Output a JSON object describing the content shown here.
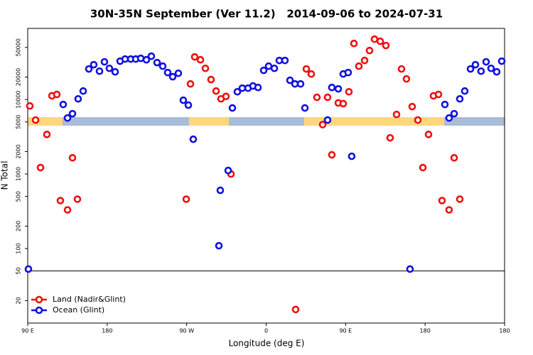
{
  "chart_data": {
    "type": "scatter",
    "title": "30N-35N September (Ver 11.2)   2014-09-06 to 2024-07-31",
    "x_label": "Longitude (deg E)",
    "y_label": "N Total",
    "log_y": true,
    "legend": "bottom-left",
    "xlim": [
      90,
      630
    ],
    "xticks": [
      {
        "value": 90,
        "label": "90 E"
      },
      180,
      {
        "value": 270,
        "label": "90 W"
      },
      {
        "value": 360,
        "label": "0"
      },
      {
        "value": 450,
        "label": "90 E"
      },
      {
        "value": 540,
        "label": "180"
      },
      {
        "value": 630,
        "label": "180"
      }
    ],
    "ylim": [
      10,
      90000
    ],
    "yticks": [
      20,
      50,
      100,
      200,
      500,
      1000,
      2000,
      5000,
      10000,
      20000,
      50000
    ],
    "hline": 50,
    "series": [
      {
        "name": "Land (Nadir&Glint)",
        "color": "#ee1111",
        "x": [
          92.4,
          98.9,
          104.5,
          111.7,
          117.4,
          123.0,
          127.0,
          135.1,
          140.7,
          146.3,
          269.5,
          274.3,
          279.1,
          285.6,
          291.2,
          297.6,
          303.3,
          308.9,
          314.5,
          320.2,
          393.4,
          405.5,
          411.1,
          417.5,
          424.0,
          429.6,
          434.4,
          441.7,
          447.3,
          453.7,
          459.4,
          465.0,
          471.5,
          477.1,
          482.7,
          489.2,
          495.6,
          500.4,
          507.7,
          513.3,
          518.9,
          525.4,
          531.8,
          537.5,
          543.9,
          549.5,
          555.2,
          559.2,
          567.2,
          572.9,
          579.3
        ],
        "values": [
          8200,
          5300,
          1220,
          3400,
          11200,
          11700,
          440,
          330,
          1650,
          460,
          460,
          16200,
          37300,
          34100,
          26200,
          18500,
          13000,
          10200,
          11000,
          1000,
          15.2,
          25700,
          22000,
          10700,
          4600,
          10700,
          1810,
          9000,
          8800,
          12700,
          56500,
          28000,
          33400,
          45400,
          64500,
          60400,
          53000,
          3060,
          6300,
          25700,
          18900,
          8030,
          5300,
          1220,
          3400,
          11200,
          11700,
          440,
          330,
          1650,
          460
        ]
      },
      {
        "name": "Ocean (Glint)",
        "color": "#1111dd",
        "x": [
          90.8,
          130.2,
          135.1,
          140.7,
          147.1,
          152.8,
          159.2,
          164.8,
          171.3,
          176.9,
          182.5,
          189.0,
          194.6,
          200.3,
          206.7,
          212.3,
          218.0,
          224.4,
          230.0,
          236.5,
          242.9,
          248.5,
          254.2,
          260.6,
          266.2,
          271.9,
          277.5,
          306.5,
          308.1,
          317.0,
          321.8,
          327.4,
          333.0,
          339.5,
          345.1,
          350.8,
          357.2,
          362.8,
          369.3,
          374.9,
          381.3,
          387.0,
          392.6,
          399.0,
          403.9,
          429.6,
          434.4,
          441.7,
          447.3,
          452.9,
          456.9,
          522.9,
          562.4,
          567.2,
          572.9,
          579.3,
          584.9,
          591.4,
          597.0,
          603.4,
          609.1,
          614.7,
          621.1,
          626.8
        ],
        "values": [
          53,
          8570,
          5650,
          6450,
          10200,
          13000,
          25700,
          29300,
          24000,
          32000,
          26200,
          23500,
          32700,
          34900,
          34900,
          34900,
          35700,
          34100,
          38100,
          31300,
          28000,
          23000,
          20200,
          22500,
          9780,
          8400,
          2930,
          109,
          604,
          1116,
          7700,
          12700,
          14200,
          14200,
          15200,
          14500,
          24600,
          28000,
          26200,
          33400,
          33400,
          18100,
          16200,
          16200,
          7700,
          5300,
          14500,
          13900,
          22000,
          23000,
          1730,
          53,
          8570,
          5650,
          6450,
          10200,
          13000,
          25700,
          29300,
          24000,
          32000,
          26200,
          23500,
          32700
        ]
      }
    ]
  }
}
